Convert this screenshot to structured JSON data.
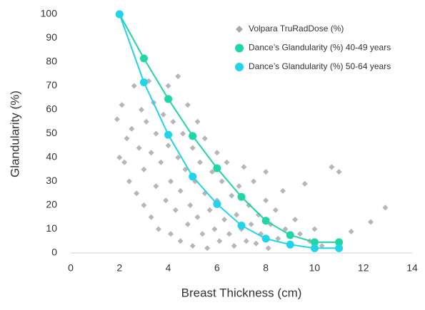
{
  "chart_data": {
    "type": "scatter",
    "xlabel": "Breast Thickness (cm)",
    "ylabel": "Glandularity (%)",
    "xlim": [
      0,
      14
    ],
    "xticks": [
      0,
      2,
      4,
      6,
      8,
      10,
      12,
      14
    ],
    "ylim": [
      0,
      100
    ],
    "yticks": [
      0,
      10,
      20,
      30,
      40,
      50,
      60,
      70,
      80,
      90,
      100
    ],
    "legend": "upper right",
    "series": [
      {
        "name": "Volpara TruRadDose (%)",
        "type": "scatter",
        "marker": "diamond",
        "color": "#a9a9a9",
        "x": [
          1.9,
          2.0,
          2.1,
          2.2,
          2.3,
          2.4,
          2.5,
          2.6,
          2.7,
          2.8,
          2.9,
          3.0,
          3.0,
          3.1,
          3.2,
          3.3,
          3.3,
          3.4,
          3.5,
          3.5,
          3.6,
          3.7,
          3.8,
          3.9,
          4.0,
          4.0,
          4.1,
          4.1,
          4.2,
          4.3,
          4.4,
          4.4,
          4.5,
          4.5,
          4.6,
          4.7,
          4.8,
          4.8,
          4.9,
          5.0,
          5.0,
          5.1,
          5.2,
          5.2,
          5.3,
          5.4,
          5.5,
          5.5,
          5.6,
          5.7,
          5.8,
          5.9,
          6.0,
          6.0,
          6.1,
          6.2,
          6.3,
          6.4,
          6.5,
          6.6,
          6.7,
          6.8,
          6.9,
          7.0,
          7.1,
          7.2,
          7.3,
          7.4,
          7.5,
          7.6,
          7.7,
          7.8,
          8.0,
          8.0,
          8.1,
          8.2,
          8.4,
          8.5,
          8.7,
          8.8,
          9.0,
          9.2,
          9.4,
          9.6,
          9.8,
          10.0,
          10.3,
          10.7,
          11.0,
          11.5,
          12.3,
          12.9
        ],
        "values": [
          56,
          40,
          62,
          38,
          48,
          30,
          52,
          70,
          25,
          44,
          60,
          35,
          20,
          55,
          72,
          15,
          42,
          63,
          28,
          50,
          10,
          38,
          58,
          22,
          70,
          45,
          8,
          30,
          55,
          18,
          40,
          74,
          5,
          26,
          50,
          35,
          12,
          62,
          20,
          44,
          3,
          30,
          55,
          15,
          38,
          8,
          25,
          48,
          2,
          18,
          34,
          10,
          42,
          22,
          5,
          30,
          14,
          38,
          8,
          24,
          3,
          16,
          28,
          10,
          36,
          5,
          20,
          12,
          30,
          4,
          16,
          8,
          34,
          22,
          2,
          12,
          18,
          6,
          26,
          10,
          4,
          14,
          8,
          29,
          5,
          10,
          3,
          36,
          34,
          9,
          13,
          19
        ]
      },
      {
        "name": "Dance’s Glandularity (%) 40-49 years",
        "type": "line",
        "marker": "circle",
        "color": "#20d6a6",
        "x": [
          2,
          3,
          4,
          5,
          6,
          7,
          8,
          9,
          10,
          11
        ],
        "values": [
          100,
          81.5,
          64.5,
          49,
          35.5,
          23.5,
          13.5,
          7.5,
          4.5,
          4.5
        ]
      },
      {
        "name": "Dance’s Glandularity (%) 50-64 years",
        "type": "line",
        "marker": "circle",
        "color": "#22d4ea",
        "x": [
          2,
          3,
          4,
          5,
          6,
          7,
          8,
          9,
          10,
          11
        ],
        "values": [
          100,
          71.5,
          49.5,
          32,
          20.5,
          11.5,
          6,
          3.5,
          2,
          2
        ]
      }
    ]
  }
}
